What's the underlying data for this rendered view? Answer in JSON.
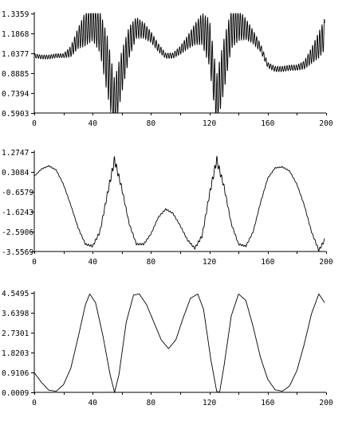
{
  "chart_data": [
    {
      "type": "line",
      "title": "",
      "xlabel": "",
      "ylabel": "",
      "xlim": [
        0,
        200
      ],
      "ylim": [
        0.5903,
        1.3359
      ],
      "x_ticks": [
        0,
        40,
        80,
        120,
        160,
        200
      ],
      "x_tick_labels": [
        "0",
        "40",
        "80",
        "120",
        "160",
        "200"
      ],
      "y_ticks": [
        0.5903,
        0.7394,
        0.8885,
        1.0377,
        1.1868,
        1.3359
      ],
      "y_tick_labels": [
        "0.5903",
        "0.7394",
        "0.8885",
        "1.0377",
        "1.1868",
        "1.3359"
      ],
      "grid": false,
      "series": [
        {
          "x": [
            0,
            5,
            10,
            15,
            20,
            25,
            30,
            35,
            40,
            45,
            50,
            55,
            60,
            65,
            70,
            75,
            80,
            85,
            90,
            95,
            100,
            105,
            110,
            115,
            120,
            125,
            130,
            135,
            140,
            145,
            150,
            155,
            160,
            165,
            170,
            175,
            180,
            185,
            190,
            195,
            199
          ],
          "y": [
            1.02,
            1.01,
            1.01,
            1.02,
            1.02,
            1.05,
            1.15,
            1.22,
            1.27,
            1.2,
            0.95,
            0.65,
            0.9,
            1.12,
            1.23,
            1.21,
            1.16,
            1.08,
            1.02,
            1.02,
            1.06,
            1.12,
            1.18,
            1.22,
            1.12,
            0.68,
            0.95,
            1.22,
            1.25,
            1.22,
            1.16,
            1.08,
            0.95,
            0.92,
            0.92,
            0.93,
            0.93,
            0.95,
            1.02,
            1.1,
            1.18
          ],
          "oscillation_amplitude": [
            0.015,
            0.015,
            0.015,
            0.015,
            0.015,
            0.04,
            0.08,
            0.13,
            0.14,
            0.16,
            0.22,
            0.2,
            0.16,
            0.12,
            0.08,
            0.06,
            0.04,
            0.03,
            0.02,
            0.02,
            0.03,
            0.05,
            0.08,
            0.12,
            0.18,
            0.2,
            0.2,
            0.15,
            0.12,
            0.08,
            0.05,
            0.03,
            0.02,
            0.02,
            0.02,
            0.02,
            0.02,
            0.03,
            0.06,
            0.1,
            0.12
          ]
        }
      ]
    },
    {
      "type": "line",
      "title": "",
      "xlabel": "",
      "ylabel": "",
      "xlim": [
        0,
        200
      ],
      "ylim": [
        -3.5569,
        1.2747
      ],
      "x_ticks": [
        0,
        40,
        80,
        120,
        160,
        200
      ],
      "x_tick_labels": [
        "0",
        "40",
        "80",
        "120",
        "160",
        "200"
      ],
      "y_ticks": [
        -3.5569,
        -2.5906,
        -1.6243,
        -0.6579,
        0.3084,
        1.2747
      ],
      "y_tick_labels": [
        "-3.5569",
        "-2.5906",
        "-1.6243",
        "-0.6579",
        "0.3084",
        "1.2747"
      ],
      "grid": false,
      "series": [
        {
          "x": [
            0,
            5,
            10,
            15,
            20,
            25,
            30,
            35,
            40,
            45,
            50,
            55,
            60,
            65,
            70,
            75,
            80,
            85,
            90,
            95,
            100,
            105,
            110,
            115,
            120,
            125,
            130,
            135,
            140,
            145,
            150,
            155,
            160,
            165,
            170,
            175,
            180,
            185,
            190,
            195,
            199
          ],
          "y": [
            0.1,
            0.45,
            0.6,
            0.4,
            -0.3,
            -1.3,
            -2.4,
            -3.2,
            -3.3,
            -2.6,
            -0.8,
            0.9,
            -0.5,
            -2.2,
            -3.2,
            -3.2,
            -2.7,
            -1.9,
            -1.5,
            -1.7,
            -2.3,
            -3.0,
            -3.4,
            -2.8,
            -0.8,
            0.9,
            -0.4,
            -2.2,
            -3.2,
            -3.3,
            -2.6,
            -1.2,
            0.0,
            0.5,
            0.55,
            0.35,
            -0.3,
            -1.3,
            -2.6,
            -3.5,
            -3.0
          ],
          "oscillation_amplitude": [
            0.02,
            0.02,
            0.02,
            0.02,
            0.02,
            0.02,
            0.03,
            0.04,
            0.05,
            0.08,
            0.12,
            0.2,
            0.1,
            0.05,
            0.04,
            0.04,
            0.03,
            0.03,
            0.03,
            0.03,
            0.03,
            0.04,
            0.05,
            0.08,
            0.12,
            0.2,
            0.1,
            0.05,
            0.04,
            0.04,
            0.03,
            0.03,
            0.02,
            0.02,
            0.02,
            0.02,
            0.02,
            0.03,
            0.04,
            0.06,
            0.08
          ]
        }
      ]
    },
    {
      "type": "line",
      "title": "",
      "xlabel": "",
      "ylabel": "",
      "xlim": [
        0,
        200
      ],
      "ylim": [
        0.0009,
        4.5495
      ],
      "x_ticks": [
        0,
        40,
        80,
        120,
        160,
        200
      ],
      "x_tick_labels": [
        "0",
        "40",
        "80",
        "120",
        "160",
        "200"
      ],
      "y_ticks": [
        0.0009,
        0.9106,
        1.8203,
        2.7301,
        3.6398,
        4.5495
      ],
      "y_tick_labels": [
        "0.0009",
        "0.9106",
        "1.8203",
        "2.7301",
        "3.6398",
        "4.5495"
      ],
      "grid": false,
      "series": [
        {
          "x": [
            0,
            5,
            10,
            15,
            20,
            25,
            30,
            35,
            38,
            42,
            47,
            52,
            55,
            58,
            63,
            68,
            72,
            77,
            82,
            87,
            92,
            97,
            102,
            107,
            112,
            116,
            121,
            125,
            127,
            130,
            135,
            140,
            145,
            150,
            155,
            160,
            165,
            170,
            175,
            180,
            185,
            190,
            195,
            199
          ],
          "y": [
            0.9,
            0.45,
            0.1,
            0.05,
            0.35,
            1.1,
            2.5,
            4.0,
            4.5,
            4.1,
            2.6,
            0.8,
            0.0,
            0.8,
            3.2,
            4.45,
            4.5,
            4.0,
            3.2,
            2.4,
            2.0,
            2.4,
            3.4,
            4.3,
            4.5,
            3.8,
            1.5,
            0.05,
            0.0,
            1.2,
            3.5,
            4.5,
            4.2,
            3.0,
            1.6,
            0.6,
            0.12,
            0.05,
            0.3,
            1.0,
            2.2,
            3.6,
            4.5,
            4.1
          ],
          "oscillation_amplitude": [
            0,
            0,
            0,
            0,
            0,
            0,
            0,
            0,
            0,
            0,
            0,
            0,
            0,
            0,
            0,
            0,
            0,
            0,
            0,
            0,
            0,
            0,
            0,
            0,
            0,
            0,
            0,
            0,
            0,
            0,
            0,
            0,
            0,
            0,
            0,
            0,
            0,
            0,
            0,
            0,
            0,
            0,
            0,
            0
          ]
        }
      ]
    }
  ]
}
